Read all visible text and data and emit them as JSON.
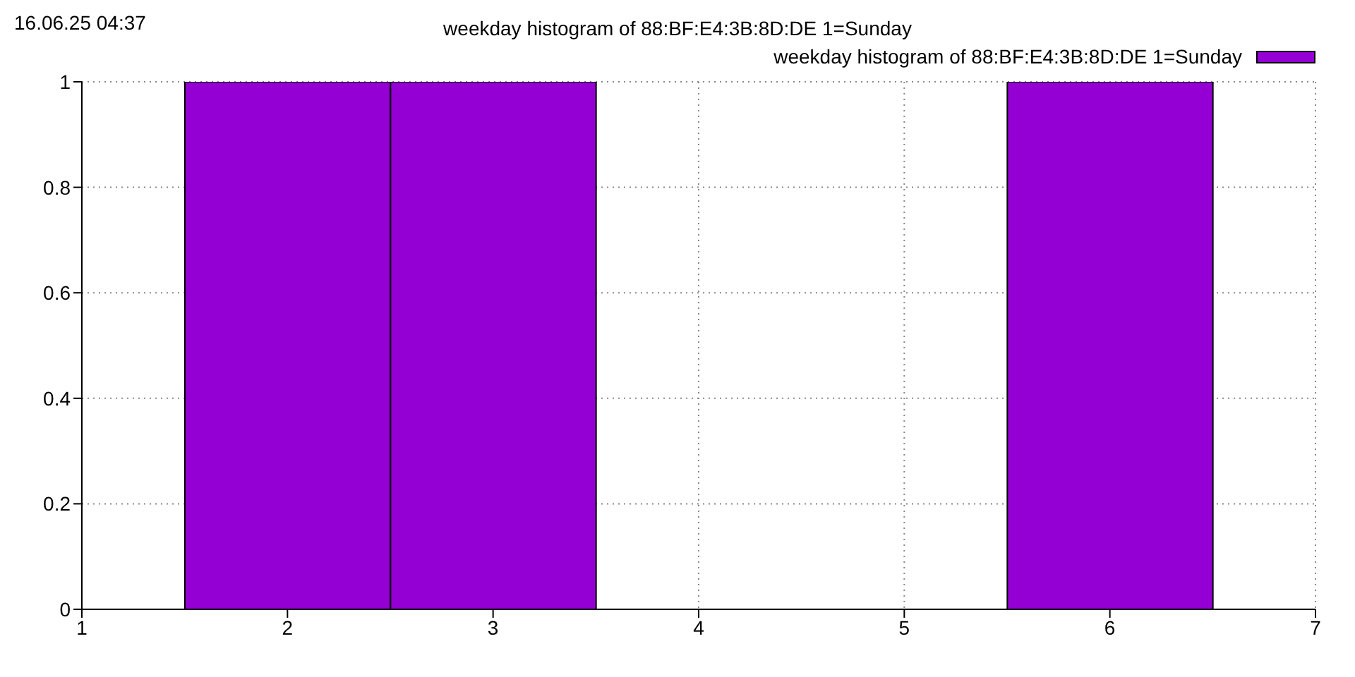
{
  "chart_data": {
    "type": "histogram",
    "title": "weekday histogram of 88:BF:E4:3B:8D:DE 1=Sunday",
    "annotations": [
      "16.06.25 04:37"
    ],
    "bins": [
      1.5,
      2.5,
      3.5,
      4.5,
      5.5,
      6.5
    ],
    "series": [
      {
        "name": "weekday histogram of 88:BF:E4:3B:8D:DE 1=Sunday",
        "color": "#9400d3",
        "values": [
          1,
          1,
          0,
          0,
          1
        ]
      }
    ],
    "xlim": [
      1,
      7
    ],
    "xticks": [
      1,
      2,
      3,
      4,
      5,
      6,
      7
    ],
    "ylim": [
      0,
      1
    ],
    "yticks": [
      0,
      0.2,
      0.4,
      0.6,
      0.8,
      1
    ],
    "grid": true,
    "legend": "top right"
  }
}
